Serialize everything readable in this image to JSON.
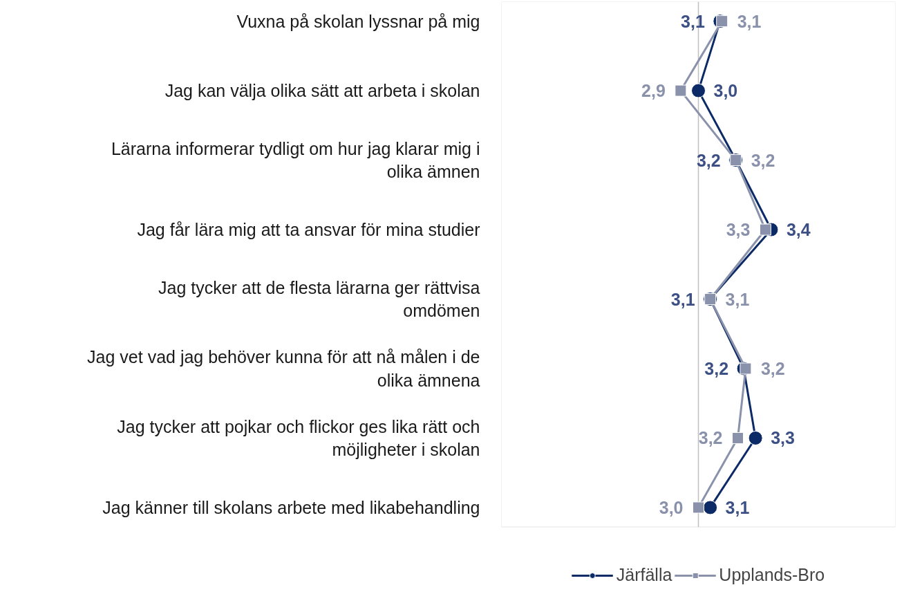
{
  "chart_data": {
    "type": "line",
    "orientation": "horizontal",
    "categories": [
      "Vuxna på skolan lyssnar på mig",
      "Jag kan välja olika sätt att arbeta i skolan",
      "Lärarna informerar tydligt om hur jag klarar mig i olika ämnen",
      "Jag får lära mig att ta ansvar för mina studier",
      "Jag tycker att de flesta lärarna ger rättvisa omdömen",
      "Jag vet vad jag behöver kunna för att nå målen i de olika ämnena",
      "Jag tycker att pojkar och flickor ges lika rätt och möjligheter i skolan",
      "Jag känner till skolans arbete med likabehandling"
    ],
    "series": [
      {
        "name": "Järfälla",
        "color": "#0b2a66",
        "marker": "circle",
        "values": [
          3.11,
          3.0,
          3.19,
          3.37,
          3.06,
          3.23,
          3.29,
          3.06
        ],
        "value_labels": [
          "3,1",
          "3,0",
          "3,2",
          "3,4",
          "3,1",
          "3,2",
          "3,3",
          "3,1"
        ]
      },
      {
        "name": "Upplands-Bro",
        "color": "#8a91ab",
        "marker": "square",
        "values": [
          3.12,
          2.91,
          3.19,
          3.34,
          3.06,
          3.24,
          3.2,
          3.0
        ],
        "value_labels": [
          "3,1",
          "2,9",
          "3,2",
          "3,3",
          "3,1",
          "3,2",
          "3,2",
          "3,0"
        ]
      }
    ],
    "xlim": [
      2,
      4
    ],
    "tick_labels": "y",
    "grid": false,
    "legend": "bottom",
    "line_style": "solid",
    "ref_lines": [
      {
        "axis": "x",
        "value": 3,
        "color": "#bfbfbf"
      }
    ]
  }
}
